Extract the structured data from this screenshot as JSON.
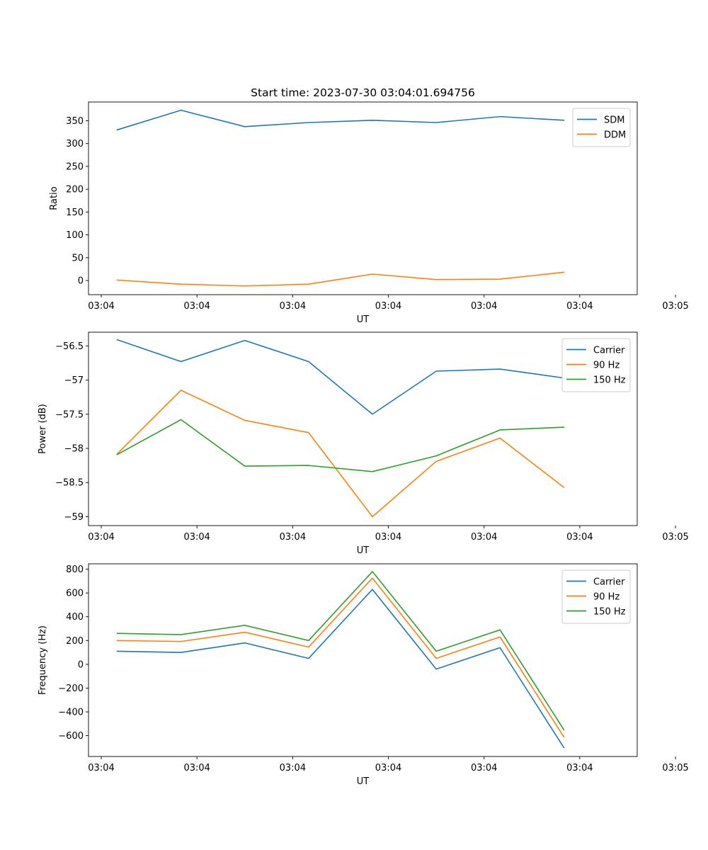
{
  "chart_data": [
    {
      "type": "line",
      "title": "Start time: 2023-07-30 03:04:01.694756",
      "xlabel": "UT",
      "ylabel": "Ratio",
      "x": [
        1,
        2,
        3,
        4,
        5,
        6,
        7,
        8
      ],
      "xlim": [
        0.55,
        9.15
      ],
      "ylim": [
        -31,
        391
      ],
      "yticks": [
        0,
        50,
        100,
        150,
        200,
        250,
        300,
        350
      ],
      "xticks": [
        0.75,
        2.25,
        3.75,
        5.25,
        6.75,
        8.25,
        9.75
      ],
      "xtick_labels": [
        "03:04",
        "03:04",
        "03:04",
        "03:04",
        "03:04",
        "03:04",
        "03:05"
      ],
      "legend": "top-right",
      "series": [
        {
          "name": "SDM",
          "color": "#1f77b4",
          "values": [
            330,
            373,
            337,
            346,
            351,
            346,
            359,
            351
          ]
        },
        {
          "name": "DDM",
          "color": "#ff7f0e",
          "values": [
            1,
            -8,
            -12,
            -8,
            14,
            2,
            3,
            18
          ]
        }
      ]
    },
    {
      "type": "line",
      "title": "",
      "xlabel": "UT",
      "ylabel": "Power (dB)",
      "x": [
        1,
        2,
        3,
        4,
        5,
        6,
        7,
        8
      ],
      "xlim": [
        0.55,
        9.15
      ],
      "ylim": [
        -59.13,
        -56.3
      ],
      "yticks": [
        -59.0,
        -58.5,
        -58.0,
        -57.5,
        -57.0,
        -56.5
      ],
      "xticks": [
        0.75,
        2.25,
        3.75,
        5.25,
        6.75,
        8.25,
        9.75
      ],
      "xtick_labels": [
        "03:04",
        "03:04",
        "03:04",
        "03:04",
        "03:04",
        "03:04",
        "03:05"
      ],
      "legend": "top-right",
      "series": [
        {
          "name": "Carrier",
          "color": "#1f77b4",
          "values": [
            -56.41,
            -56.73,
            -56.42,
            -56.73,
            -57.5,
            -56.87,
            -56.84,
            -56.97
          ]
        },
        {
          "name": "90 Hz",
          "color": "#ff7f0e",
          "values": [
            -58.08,
            -57.15,
            -57.59,
            -57.77,
            -59.0,
            -58.19,
            -57.85,
            -58.57
          ]
        },
        {
          "name": "150 Hz",
          "color": "#2ca02c",
          "values": [
            -58.09,
            -57.58,
            -58.26,
            -58.25,
            -58.34,
            -58.11,
            -57.73,
            -57.69
          ]
        }
      ]
    },
    {
      "type": "line",
      "title": "",
      "xlabel": "UT",
      "ylabel": "Frequency (Hz)",
      "x": [
        1,
        2,
        3,
        4,
        5,
        6,
        7,
        8
      ],
      "xlim": [
        0.55,
        9.15
      ],
      "ylim": [
        -775,
        845
      ],
      "yticks": [
        -600,
        -400,
        -200,
        0,
        200,
        400,
        600,
        800
      ],
      "xticks": [
        0.75,
        2.25,
        3.75,
        5.25,
        6.75,
        8.25,
        9.75
      ],
      "xtick_labels": [
        "03:04",
        "03:04",
        "03:04",
        "03:04",
        "03:04",
        "03:04",
        "03:05"
      ],
      "legend": "top-right",
      "series": [
        {
          "name": "Carrier",
          "color": "#1f77b4",
          "values": [
            110,
            100,
            180,
            50,
            630,
            -40,
            140,
            -700
          ]
        },
        {
          "name": "90 Hz",
          "color": "#ff7f0e",
          "values": [
            200,
            192,
            270,
            145,
            725,
            50,
            230,
            -610
          ]
        },
        {
          "name": "150 Hz",
          "color": "#2ca02c",
          "values": [
            260,
            250,
            328,
            200,
            780,
            110,
            290,
            -550
          ]
        }
      ]
    }
  ]
}
